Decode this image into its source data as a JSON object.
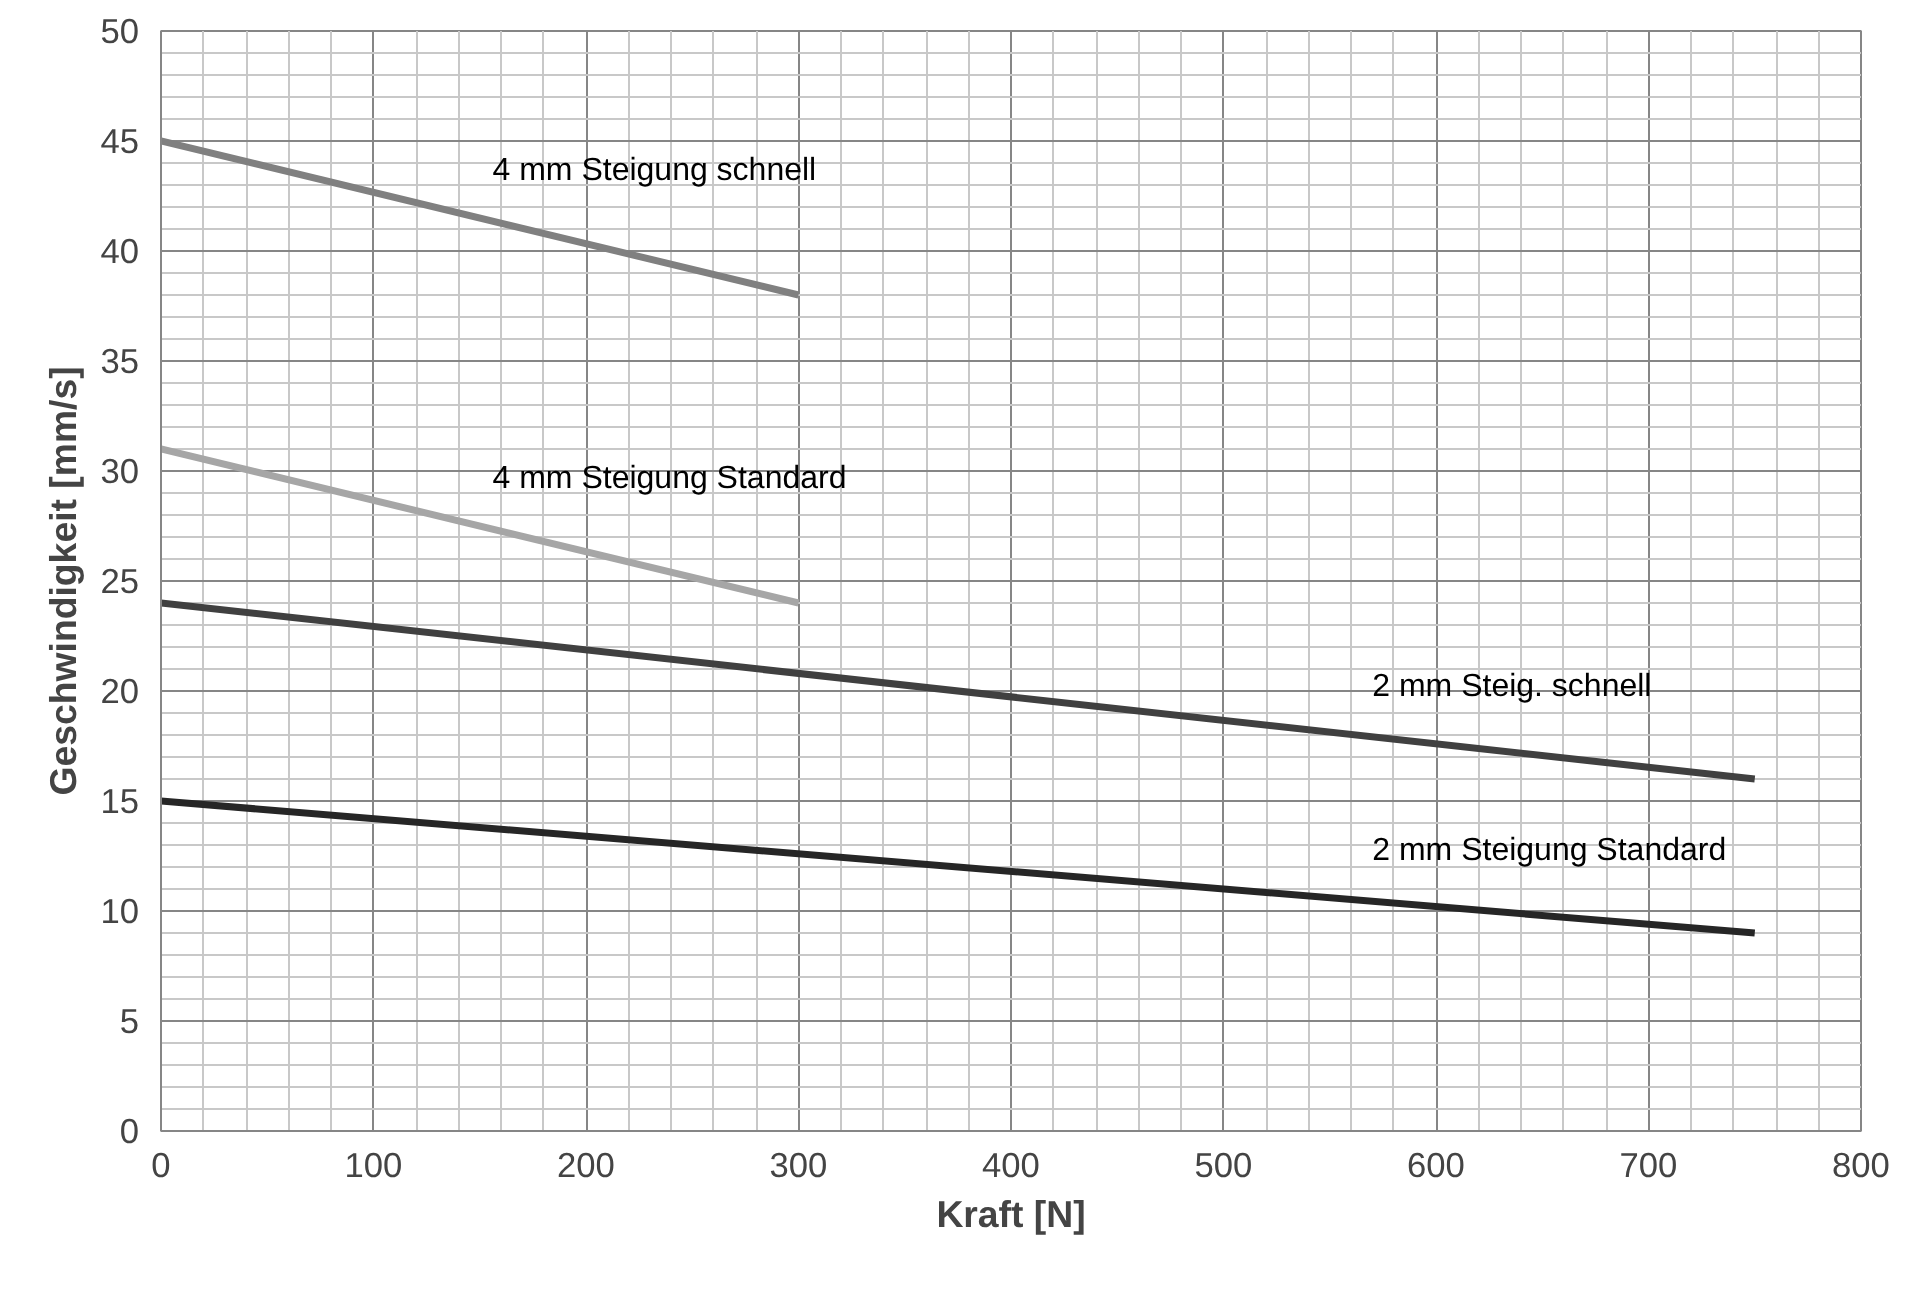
{
  "chart_data": {
    "type": "line",
    "xlabel": "Kraft [N]",
    "ylabel": "Geschwindigkeit [mm/s]",
    "xlim": [
      0,
      800
    ],
    "ylim": [
      0,
      50
    ],
    "xticks": [
      0,
      100,
      200,
      300,
      400,
      500,
      600,
      700,
      800
    ],
    "yticks": [
      0,
      5,
      10,
      15,
      20,
      25,
      30,
      35,
      40,
      45,
      50
    ],
    "grid": true,
    "marker": "none",
    "line_style": "solid",
    "series": [
      {
        "name": "4 mm Steigung schnell",
        "color": "#808080",
        "x": [
          0,
          300
        ],
        "values": [
          45,
          38
        ]
      },
      {
        "name": "4 mm Steigung Standard",
        "color": "#a6a6a6",
        "x": [
          0,
          300
        ],
        "values": [
          31,
          24
        ]
      },
      {
        "name": "2 mm Steig. schnell",
        "color": "#404040",
        "x": [
          0,
          750
        ],
        "values": [
          24,
          16
        ]
      },
      {
        "name": "2 mm Steigung Standard",
        "color": "#262626",
        "x": [
          0,
          750
        ],
        "values": [
          15,
          9
        ]
      }
    ]
  }
}
